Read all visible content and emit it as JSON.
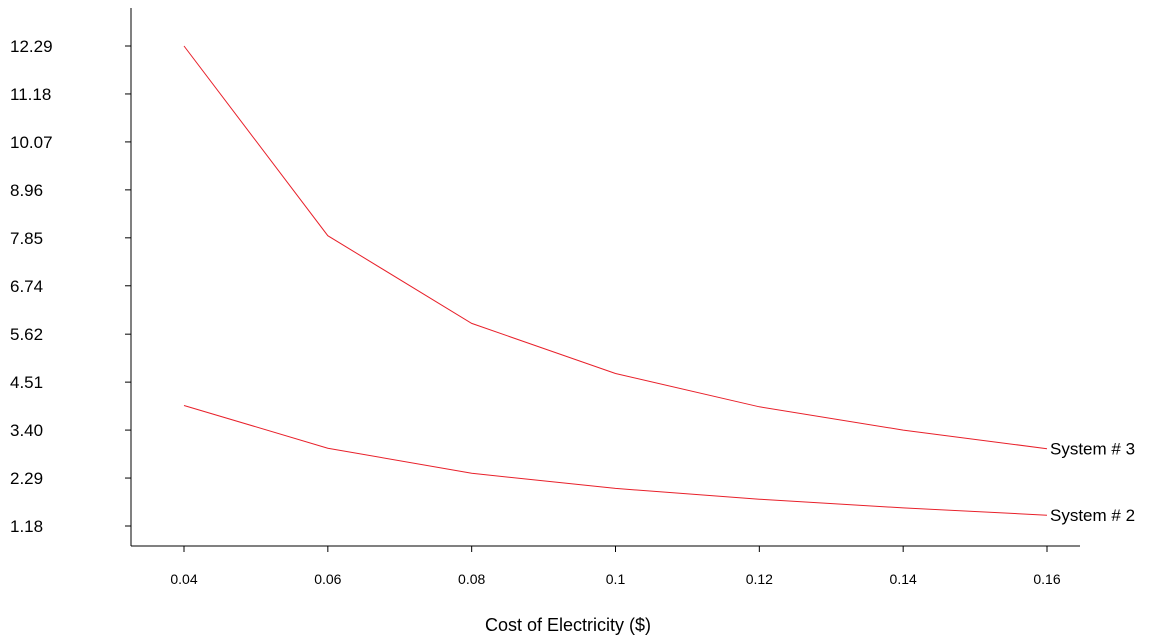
{
  "chart_data": {
    "type": "line",
    "xlabel": "Cost of Electricity ($)",
    "ylabel": "",
    "x": [
      0.04,
      0.06,
      0.08,
      0.1,
      0.12,
      0.14,
      0.16
    ],
    "x_tick_labels": [
      "0.04",
      "0.06",
      "0.08",
      "0.1",
      "0.12",
      "0.14",
      "0.16"
    ],
    "y_ticks": [
      1.18,
      2.29,
      3.4,
      4.51,
      5.62,
      6.74,
      7.85,
      8.96,
      10.07,
      11.18,
      12.29
    ],
    "y_tick_labels": [
      "1.18",
      "2.29",
      "3.40",
      "4.51",
      "5.62",
      "6.74",
      "7.85",
      "8.96",
      "10.07",
      "11.18",
      "12.29"
    ],
    "ylim": [
      0.4,
      13.3
    ],
    "xlim": [
      0.0335,
      0.1665
    ],
    "grid": false,
    "legend": "none",
    "series": [
      {
        "name": "System # 3",
        "color": "#e8202a",
        "values": [
          12.29,
          7.9,
          5.87,
          4.71,
          3.94,
          3.4,
          2.97
        ]
      },
      {
        "name": "System # 2",
        "color": "#e8202a",
        "values": [
          3.97,
          2.98,
          2.4,
          2.05,
          1.8,
          1.6,
          1.43
        ]
      }
    ]
  }
}
